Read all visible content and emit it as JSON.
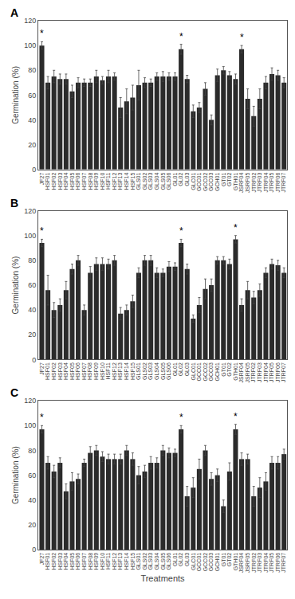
{
  "chart_data": [
    {
      "type": "bar",
      "title": "A",
      "categories": [
        "JF27",
        "HSF01",
        "HSF02",
        "HSF03",
        "HSF04",
        "HSF05",
        "HSF06",
        "HSF07",
        "HSF08",
        "HSF09",
        "HSF10",
        "HSF11",
        "HSF12",
        "HSF13",
        "HSF14",
        "HSF15",
        "GLS01",
        "GLS02",
        "GLS03",
        "GLS04",
        "GLS05",
        "GLS06",
        "GL01",
        "GL02",
        "GL03",
        "GLC01",
        "GCC01",
        "GCC02",
        "GCC03",
        "GCH01",
        "GT01",
        "GT02",
        "GTH01",
        "JSRF04",
        "JSRF05",
        "JTRF02",
        "JTRF03",
        "JTRF04",
        "JTRF05",
        "JTRF06",
        "JTRF07"
      ],
      "values": [
        100,
        70,
        75,
        73,
        73,
        63,
        70,
        70,
        70,
        75,
        72,
        75,
        75,
        50,
        55,
        58,
        68,
        70,
        70,
        75,
        75,
        75,
        75,
        97,
        73,
        47,
        50,
        65,
        40,
        76,
        80,
        76,
        73,
        97,
        57,
        43,
        57,
        70,
        77,
        76,
        70
      ],
      "errors": [
        3,
        5,
        5,
        4,
        4,
        5,
        4,
        3,
        3,
        5,
        3,
        5,
        3,
        8,
        10,
        10,
        12,
        4,
        3,
        3,
        4,
        3,
        3,
        4,
        3,
        5,
        4,
        5,
        4,
        5,
        3,
        3,
        4,
        3,
        8,
        8,
        8,
        5,
        5,
        4,
        4
      ],
      "annotations": [
        {
          "category": "JF27",
          "text": "*"
        },
        {
          "category": "GL02",
          "text": "*"
        },
        {
          "category": "JSRF04",
          "text": "*"
        }
      ],
      "color": "#2b2b2b",
      "ylabel": "Germination (%)",
      "ylim": [
        0,
        120
      ],
      "yticks": [
        0,
        20,
        40,
        60,
        80,
        100,
        120
      ],
      "grid": false
    },
    {
      "type": "bar",
      "title": "B",
      "categories": [
        "JF27",
        "HSF01",
        "HSF02",
        "HSF03",
        "HSF04",
        "HSF05",
        "HSF06",
        "HSF07",
        "HSF08",
        "HSF09",
        "HSF10",
        "HSF11",
        "HSF12",
        "HSF13",
        "HSF14",
        "HSF15",
        "GLS01",
        "GLS02",
        "GLS03",
        "GLS04",
        "GLS05",
        "GLS06",
        "GL01",
        "GL02",
        "GL03",
        "GLC01",
        "GCC01",
        "GCC02",
        "GCC03",
        "GCH01",
        "GT01",
        "GT02",
        "GTH01",
        "JSRF04",
        "JSRF05",
        "JTRF02",
        "JTRF03",
        "JTRF04",
        "JTRF05",
        "JTRF06",
        "JTRF07"
      ],
      "values": [
        94,
        56,
        40,
        44,
        56,
        73,
        80,
        40,
        70,
        77,
        77,
        77,
        80,
        37,
        40,
        47,
        70,
        80,
        80,
        70,
        70,
        75,
        75,
        94,
        73,
        33,
        44,
        57,
        60,
        80,
        80,
        77,
        97,
        44,
        56,
        50,
        56,
        70,
        77,
        76,
        70
      ],
      "errors": [
        3,
        12,
        6,
        5,
        7,
        4,
        4,
        4,
        5,
        5,
        5,
        4,
        4,
        5,
        4,
        5,
        4,
        4,
        4,
        4,
        3,
        4,
        3,
        3,
        4,
        3,
        6,
        8,
        5,
        3,
        3,
        4,
        3,
        5,
        7,
        5,
        5,
        4,
        4,
        4,
        4
      ],
      "annotations": [
        {
          "category": "JF27",
          "text": "*"
        },
        {
          "category": "GL02",
          "text": "*"
        },
        {
          "category": "GTH01",
          "text": "*"
        }
      ],
      "color": "#2b2b2b",
      "ylabel": "Germination (%)",
      "ylim": [
        0,
        120
      ],
      "yticks": [
        0,
        20,
        40,
        60,
        80,
        100,
        120
      ],
      "grid": false
    },
    {
      "type": "bar",
      "title": "C",
      "categories": [
        "JF27",
        "HSF01",
        "HSF02",
        "HSF03",
        "HSF04",
        "HSF05",
        "HSF06",
        "HSF07",
        "HSF08",
        "HSF09",
        "HSF10",
        "HSF11",
        "HSF12",
        "HSF13",
        "HSF14",
        "HSF15",
        "GLS01",
        "GLS02",
        "GLS03",
        "GLS04",
        "GLS05",
        "GLS06",
        "GL01",
        "GL02",
        "GL03",
        "GLC01",
        "GCC01",
        "GCC02",
        "GCC03",
        "GCH01",
        "GT01",
        "GT02",
        "GTH01",
        "JSRF04",
        "JSRF05",
        "JTRF02",
        "JTRF03",
        "JTRF04",
        "JTRF05",
        "JTRF06",
        "JTRF07"
      ],
      "values": [
        97,
        70,
        63,
        70,
        47,
        55,
        57,
        70,
        78,
        80,
        75,
        73,
        73,
        73,
        80,
        73,
        60,
        63,
        70,
        70,
        80,
        78,
        78,
        97,
        43,
        50,
        65,
        80,
        57,
        60,
        35,
        63,
        97,
        73,
        73,
        43,
        50,
        55,
        70,
        70,
        77
      ],
      "errors": [
        3,
        5,
        5,
        4,
        6,
        7,
        4,
        3,
        5,
        4,
        4,
        4,
        4,
        4,
        4,
        5,
        7,
        5,
        5,
        4,
        4,
        4,
        3,
        3,
        8,
        8,
        8,
        4,
        5,
        5,
        5,
        7,
        4,
        5,
        4,
        8,
        8,
        7,
        5,
        5,
        4
      ],
      "annotations": [
        {
          "category": "JF27",
          "text": "*"
        },
        {
          "category": "GL02",
          "text": "*"
        },
        {
          "category": "GTH01",
          "text": "*"
        }
      ],
      "color": "#2b2b2b",
      "ylabel": "Germination (%)",
      "xlabel": "Treatments",
      "ylim": [
        0,
        120
      ],
      "yticks": [
        0,
        20,
        40,
        60,
        80,
        100,
        120
      ],
      "grid": false
    }
  ]
}
